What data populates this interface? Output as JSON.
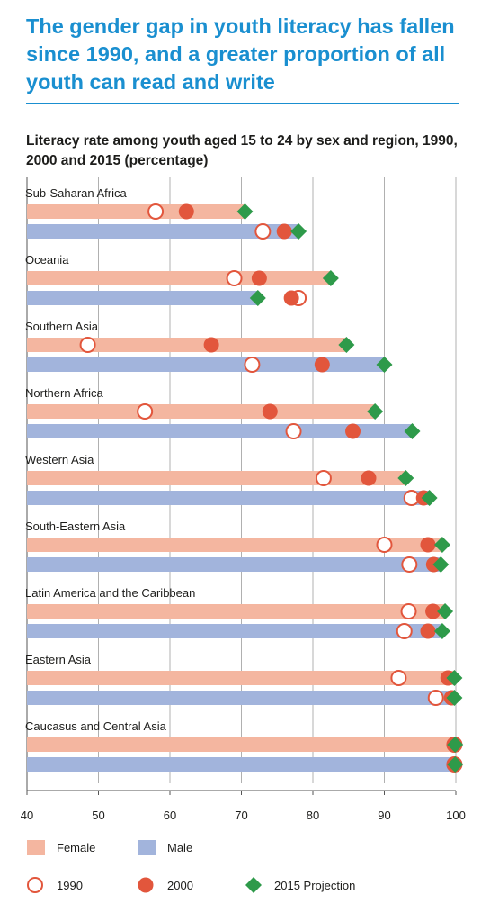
{
  "headline": "The gender gap in youth literacy has fallen since 1990, and a greater proportion of all youth can read and write",
  "colors": {
    "accent": "#1a8fd0",
    "female": "#f4b6a0",
    "male": "#a2b4dc",
    "marker_red": "#e2563c",
    "marker_green": "#2e9a4a",
    "grid": "#b0b0b0"
  },
  "chart_data": {
    "type": "dot-bar",
    "title": "Literacy rate among youth aged 15 to 24 by sex and region, 1990, 2000 and 2015 (percentage)",
    "xlim": [
      40,
      100
    ],
    "ticks": [
      40,
      50,
      60,
      70,
      80,
      90,
      100
    ],
    "grid": true,
    "bar_series": [
      "Female",
      "Male"
    ],
    "marker_series": [
      "1990",
      "2000",
      "2015 Projection"
    ],
    "regions": [
      {
        "name": "Sub-Saharan Africa",
        "female": {
          "1990": 58,
          "2000": 62.3,
          "2015": 70.5
        },
        "male": {
          "1990": 73,
          "2000": 76,
          "2015": 78
        }
      },
      {
        "name": "Oceania",
        "female": {
          "1990": 69,
          "2000": 72.5,
          "2015": 82.5
        },
        "male": {
          "1990": 78,
          "2000": 77,
          "2015": 72.3
        }
      },
      {
        "name": "Southern Asia",
        "female": {
          "1990": 48.5,
          "2000": 65.8,
          "2015": 84.7
        },
        "male": {
          "1990": 71.5,
          "2000": 81.3,
          "2015": 90
        }
      },
      {
        "name": "Northern Africa",
        "female": {
          "1990": 56.5,
          "2000": 74,
          "2015": 88.7
        },
        "male": {
          "1990": 77.3,
          "2000": 85.6,
          "2015": 93.9
        }
      },
      {
        "name": "Western Asia",
        "female": {
          "1990": 81.5,
          "2000": 87.8,
          "2015": 93
        },
        "male": {
          "1990": 93.8,
          "2000": 95.5,
          "2015": 96.3
        }
      },
      {
        "name": "South-Eastern Asia",
        "female": {
          "1990": 90,
          "2000": 96.1,
          "2015": 98.1
        },
        "male": {
          "1990": 93.5,
          "2000": 96.9,
          "2015": 97.9
        }
      },
      {
        "name": "Latin America and the Caribbean",
        "female": {
          "1990": 93.4,
          "2000": 96.8,
          "2015": 98.5
        },
        "male": {
          "1990": 92.8,
          "2000": 96.1,
          "2015": 98.1
        }
      },
      {
        "name": "Eastern Asia",
        "female": {
          "1990": 92,
          "2000": 98.9,
          "2015": 99.8
        },
        "male": {
          "1990": 97.2,
          "2000": 99.4,
          "2015": 99.8
        }
      },
      {
        "name": "Caucasus and Central Asia",
        "female": {
          "1990": 99.8,
          "2000": 99.8,
          "2015": 99.9
        },
        "male": {
          "1990": 99.8,
          "2000": 99.8,
          "2015": 99.9
        }
      }
    ]
  },
  "legend": {
    "female": "Female",
    "male": "Male",
    "y1990": "1990",
    "y2000": "2000",
    "y2015": "2015 Projection"
  }
}
